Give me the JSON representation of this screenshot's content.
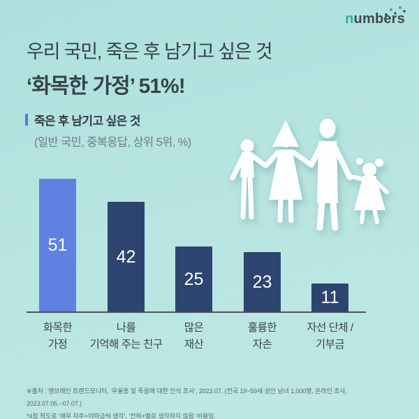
{
  "logo": {
    "prefix": "n",
    "rest": "umbers"
  },
  "header": {
    "title_line1": "우리 국민, 죽은 후 남기고 싶은 것",
    "title_line2": "‘화목한 가정’ 51%!"
  },
  "subtitle": {
    "line1": "죽은 후 남기고 싶은 것",
    "line2": "(일반 국민, 중복응답, 상위 5위, %)"
  },
  "chart_data": {
    "type": "bar",
    "title": "죽은 후 남기고 싶은 것",
    "subtitle": "(일반 국민, 중복응답, 상위 5위, %)",
    "unit": "%",
    "categories": [
      "화목한 가정",
      "나를 기억해 주는 친구",
      "많은 재산",
      "훌륭한 자손",
      "자선 단체 / 기부금"
    ],
    "category_lines": [
      [
        "화목한",
        "가정"
      ],
      [
        "나를",
        "기억해 주는 친구"
      ],
      [
        "많은",
        "재산"
      ],
      [
        "훌륭한",
        "자손"
      ],
      [
        "자선 단체 /",
        "기부금"
      ]
    ],
    "values": [
      51,
      42,
      25,
      23,
      11
    ],
    "highlight_index": 0,
    "value_labels": "inside-center",
    "ylim": [
      0,
      55
    ],
    "grid": false,
    "legend": false,
    "colors": {
      "highlight": "#6180e2",
      "default": "#2e4470",
      "value_text": "#ffffff",
      "axis": "#46525c"
    }
  },
  "illustration": {
    "name": "paper-cutout-family",
    "figures": [
      "boy",
      "mother",
      "father",
      "girl"
    ],
    "color": "#fdffff"
  },
  "footer": {
    "line1": "※출처 : 엠브레인 트렌드모니터, ‘우울증 및 죽음에 대한 인식 조사’, 2023.07. (전국 19~59세 성인 남녀 1,000명, 온라인 조사, 2023.07.05.~07.07.)",
    "line2": "*4점 척도로 ‘매우 자주+이따금씩 생각’, ‘전혀+별로 생각하지 않음’ 비율임."
  },
  "theme": {
    "background_top": "#aee0dd",
    "background_bottom": "#bfe8e5",
    "title_color": "#36424a",
    "accent_bar": "#4c7ce8",
    "logo_teal": "#2fae9e",
    "logo_dark": "#3c4950"
  }
}
